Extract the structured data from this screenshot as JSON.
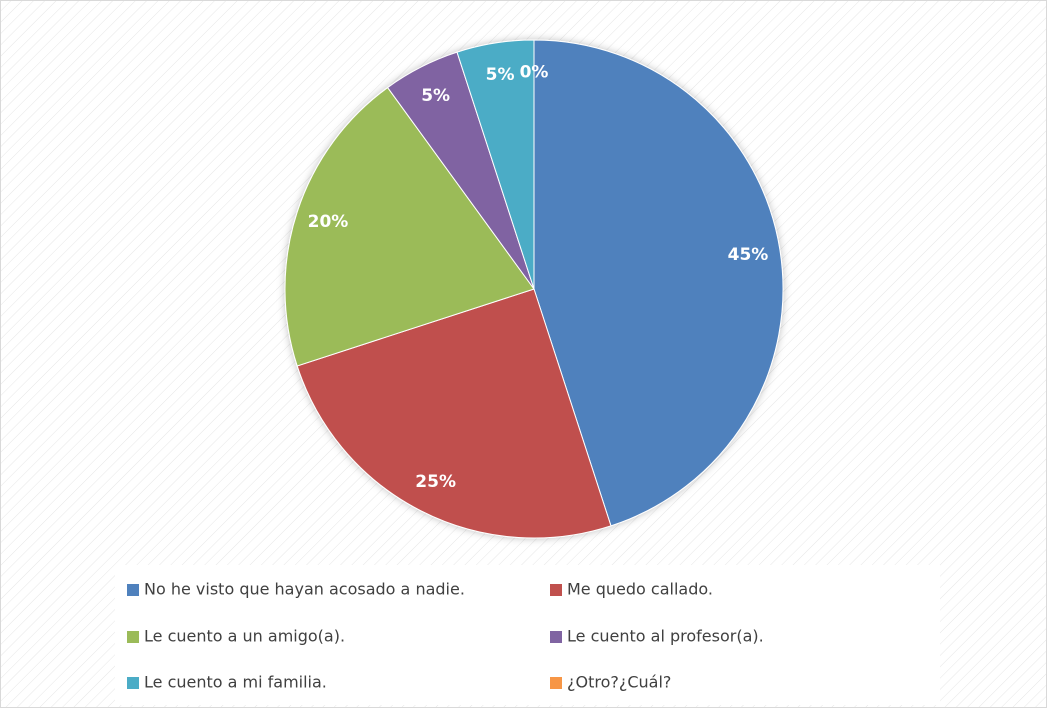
{
  "chart_data": {
    "type": "pie",
    "categories": [
      "No he visto que hayan acosado a nadie.",
      "Me quedo callado.",
      "Le cuento a un amigo(a).",
      "Le cuento al profesor(a).",
      "Le cuento a mi familia.",
      "¿Otro?¿Cuál?"
    ],
    "values": [
      45,
      25,
      20,
      5,
      5,
      0
    ],
    "value_labels": [
      "45%",
      "25%",
      "20%",
      "5%",
      "5%",
      "0%"
    ],
    "colors": [
      "#4f81bd",
      "#c0504d",
      "#9bbb59",
      "#8064a2",
      "#4bacc6",
      "#f79646"
    ],
    "legend": "bottom"
  }
}
